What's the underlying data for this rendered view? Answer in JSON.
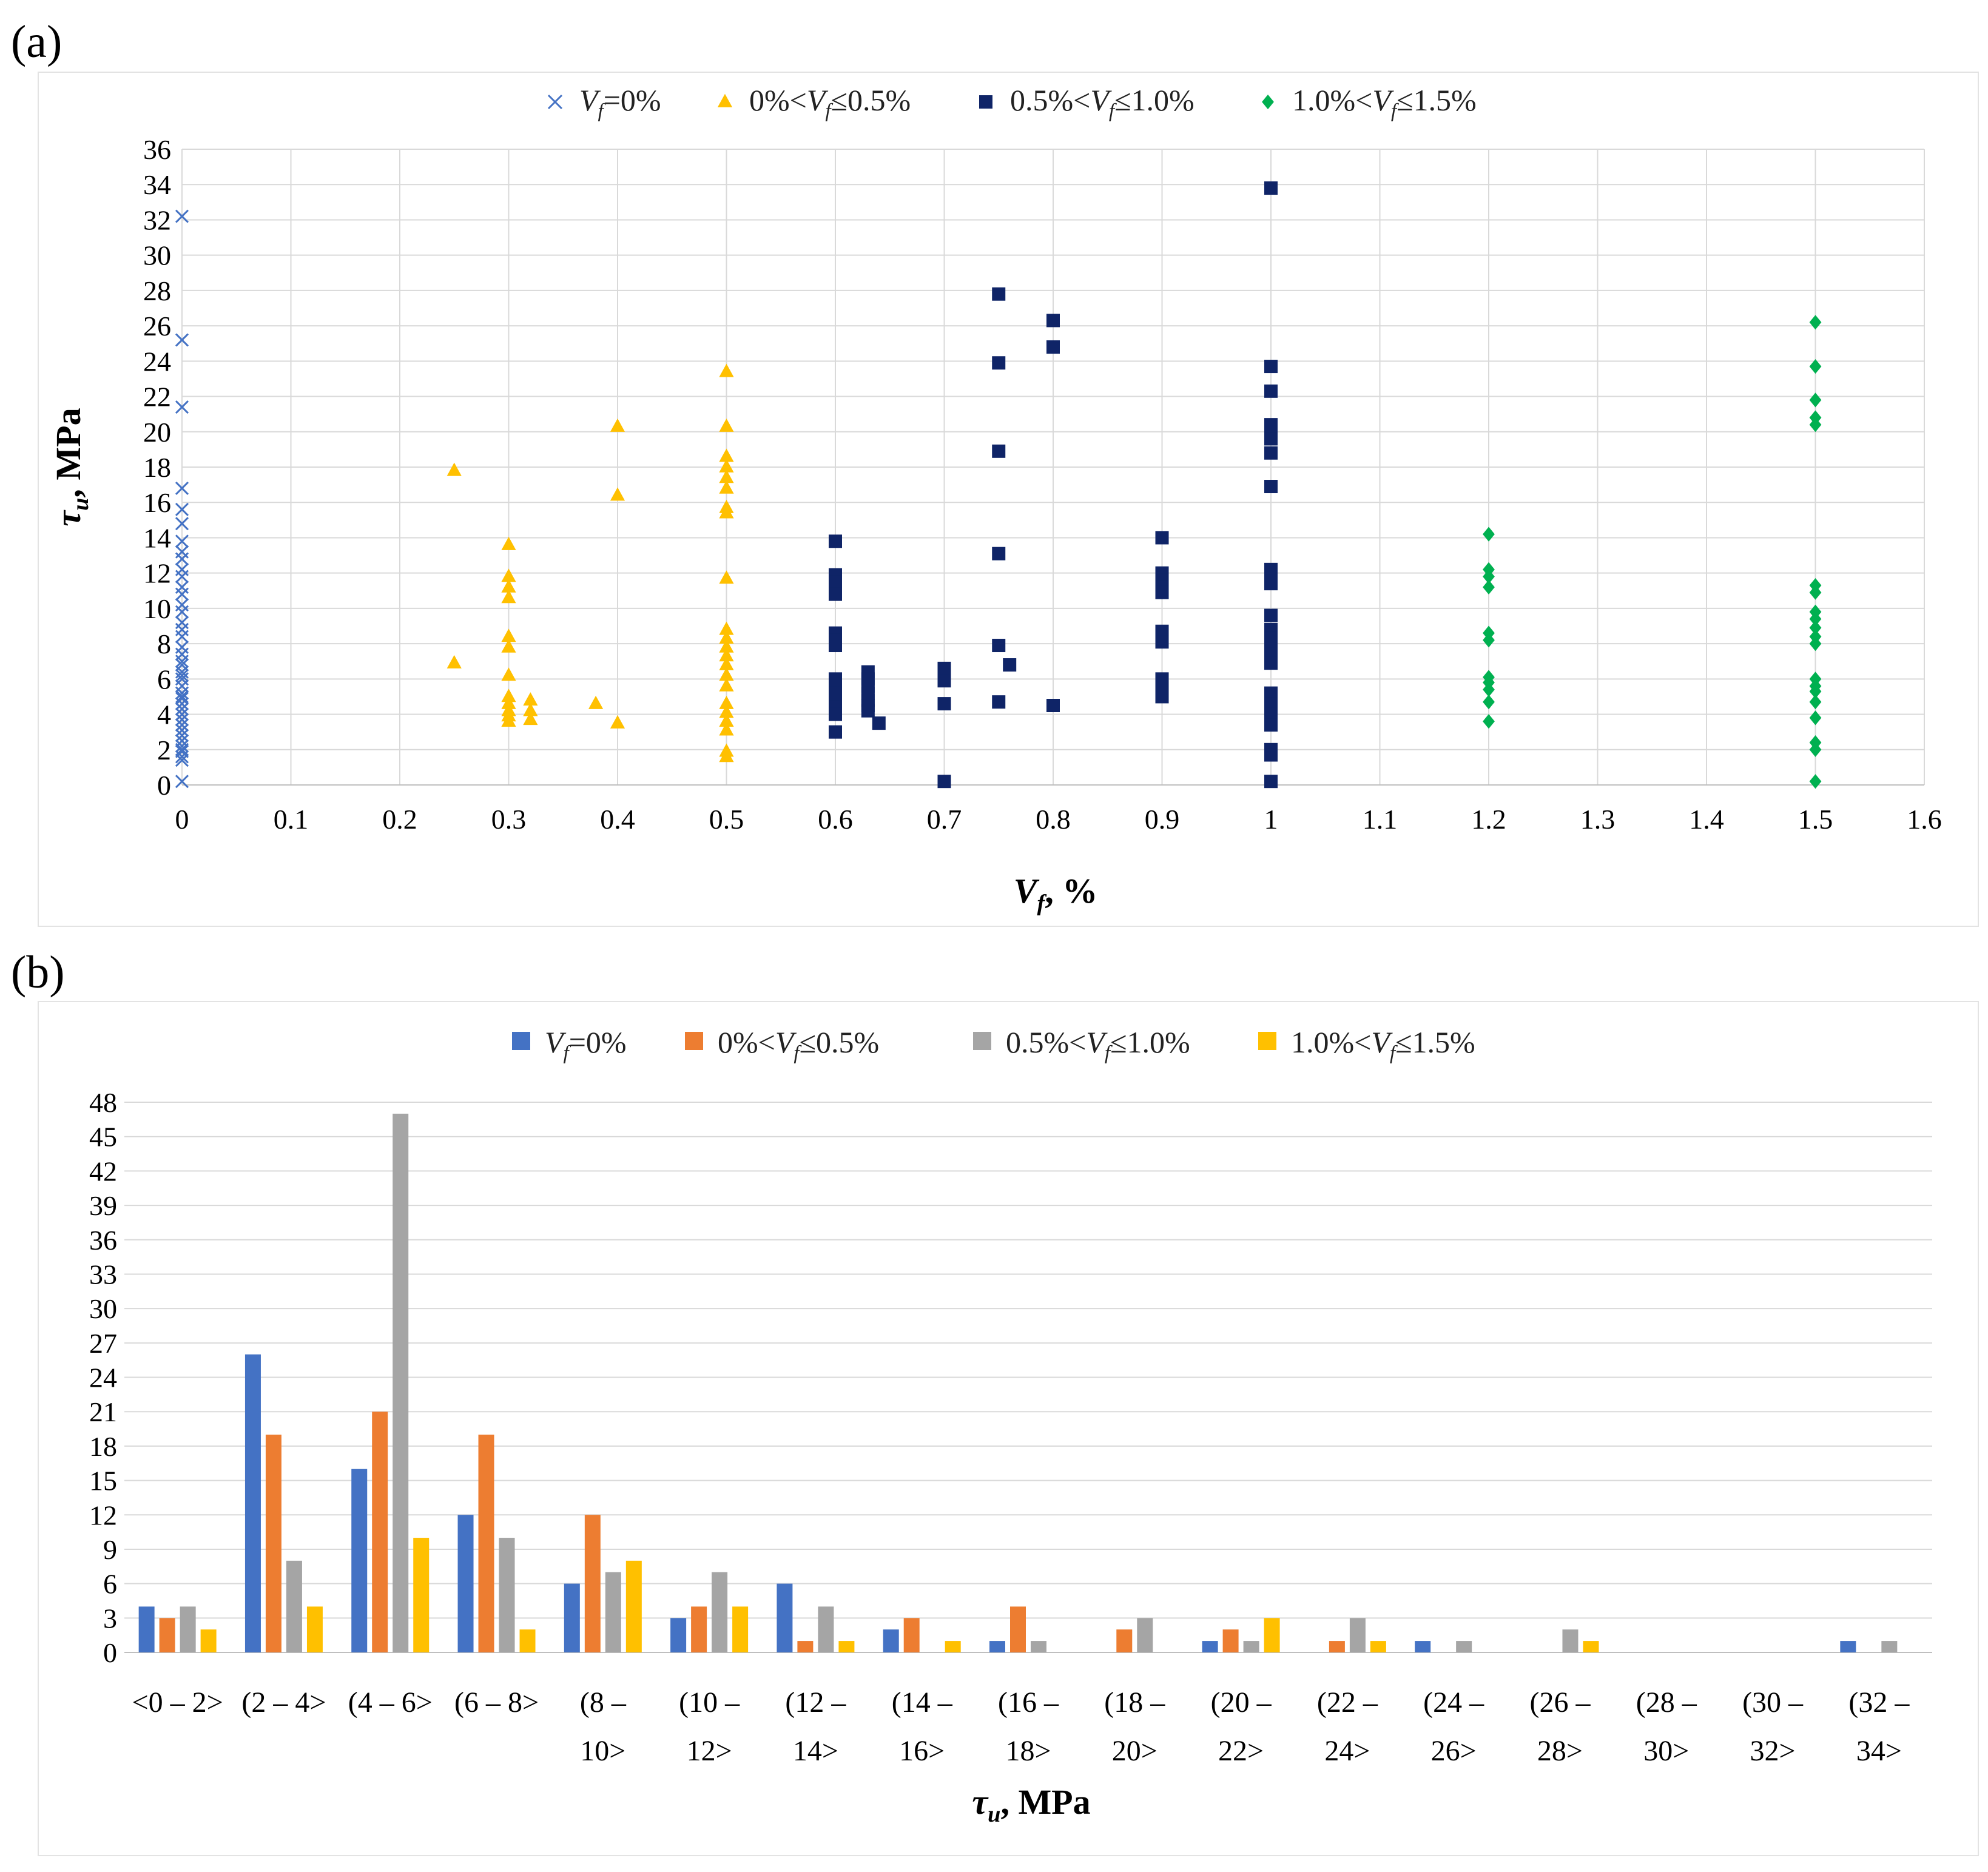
{
  "panels": {
    "a": "(a)",
    "b": "(b)"
  },
  "chart_data": [
    {
      "type": "scatter",
      "panel": "(a)",
      "xlabel": {
        "main": "V",
        "sub": "f",
        "rest": ", %"
      },
      "ylabel": {
        "main": "τ",
        "sub": "u",
        "rest": ", MPa"
      },
      "xlim": [
        0,
        1.6
      ],
      "ylim": [
        0,
        36
      ],
      "xticks": [
        "0",
        "0.1",
        "0.2",
        "0.3",
        "0.4",
        "0.5",
        "0.6",
        "0.7",
        "0.8",
        "0.9",
        "1",
        "1.1",
        "1.2",
        "1.3",
        "1.4",
        "1.5",
        "1.6"
      ],
      "yticks": [
        "0",
        "2",
        "4",
        "6",
        "8",
        "10",
        "12",
        "14",
        "16",
        "18",
        "20",
        "22",
        "24",
        "26",
        "28",
        "30",
        "32",
        "34",
        "36"
      ],
      "grid": true,
      "legend_position": "top-center",
      "series": [
        {
          "name": "Vf=0%",
          "legend": {
            "pre": "",
            "v": "V",
            "s": "f",
            "post": "=0%"
          },
          "marker": "x",
          "color": "#4472c4",
          "x": [
            0,
            0,
            0,
            0,
            0,
            0,
            0,
            0,
            0,
            0,
            0,
            0,
            0,
            0,
            0,
            0,
            0,
            0,
            0,
            0,
            0,
            0,
            0,
            0,
            0,
            0,
            0,
            0,
            0,
            0,
            0,
            0,
            0,
            0,
            0,
            0,
            0,
            0,
            0,
            0,
            0,
            0,
            0
          ],
          "y": [
            32.2,
            25.2,
            21.4,
            16.8,
            15.6,
            14.8,
            13.8,
            13.2,
            12.8,
            12.2,
            11.8,
            11.2,
            10.8,
            10.2,
            9.8,
            9.2,
            8.8,
            8.4,
            7.8,
            7.4,
            7.0,
            6.8,
            6.4,
            6.0,
            5.6,
            5.2,
            4.9,
            4.6,
            4.3,
            4.0,
            3.7,
            3.4,
            3.1,
            2.8,
            2.5,
            2.2,
            1.9,
            1.6,
            1.4,
            0.2,
            5.0,
            6.2,
            2.0
          ]
        },
        {
          "name": "0%<Vf≤0.5%",
          "legend": {
            "pre": "0%<",
            "v": "V",
            "s": "f",
            "post": "≤0.5%"
          },
          "marker": "triangle",
          "color": "#ffc000",
          "x": [
            0.25,
            0.25,
            0.3,
            0.3,
            0.3,
            0.3,
            0.3,
            0.3,
            0.3,
            0.3,
            0.3,
            0.3,
            0.3,
            0.3,
            0.32,
            0.32,
            0.32,
            0.38,
            0.4,
            0.4,
            0.4,
            0.5,
            0.5,
            0.5,
            0.5,
            0.5,
            0.5,
            0.5,
            0.5,
            0.5,
            0.5,
            0.5,
            0.5,
            0.5,
            0.5,
            0.5,
            0.5,
            0.5,
            0.5,
            0.5,
            0.5,
            0.5,
            0.5
          ],
          "y": [
            17.8,
            6.9,
            13.6,
            11.8,
            11.2,
            10.6,
            8.4,
            7.8,
            6.2,
            5.0,
            4.6,
            4.2,
            3.9,
            3.6,
            4.8,
            4.2,
            3.7,
            4.6,
            20.3,
            16.4,
            3.5,
            23.4,
            20.3,
            18.6,
            18.0,
            17.4,
            16.8,
            15.7,
            15.4,
            11.7,
            8.8,
            8.3,
            7.8,
            7.3,
            6.8,
            6.2,
            5.6,
            4.6,
            4.1,
            3.6,
            3.1,
            1.9,
            1.6
          ]
        },
        {
          "name": "0.5%<Vf≤1.0%",
          "legend": {
            "pre": "0.5%<",
            "v": "V",
            "s": "f",
            "post": "≤1.0%"
          },
          "marker": "square",
          "color": "#0f2467",
          "x": [
            0.6,
            0.6,
            0.6,
            0.6,
            0.6,
            0.6,
            0.6,
            0.6,
            0.6,
            0.6,
            0.6,
            0.6,
            0.6,
            0.6,
            0.6,
            0.63,
            0.63,
            0.63,
            0.63,
            0.63,
            0.63,
            0.63,
            0.64,
            0.7,
            0.7,
            0.7,
            0.7,
            0.7,
            0.75,
            0.75,
            0.75,
            0.75,
            0.75,
            0.75,
            0.76,
            0.8,
            0.8,
            0.8,
            0.9,
            0.9,
            0.9,
            0.9,
            0.9,
            0.9,
            0.9,
            0.9,
            0.9,
            0.9,
            0.9,
            1,
            1,
            1,
            1,
            1,
            1,
            1,
            1,
            1,
            1,
            1,
            1,
            1,
            1,
            1,
            1,
            1,
            1,
            1,
            1,
            1,
            1,
            1,
            1,
            1,
            1,
            1
          ],
          "y": [
            13.8,
            11.9,
            11.5,
            11.1,
            10.8,
            8.6,
            8.2,
            7.9,
            6.0,
            5.6,
            5.2,
            4.8,
            4.4,
            4.0,
            3.0,
            6.4,
            6.0,
            5.6,
            5.2,
            4.8,
            4.5,
            4.2,
            3.5,
            6.6,
            6.3,
            5.9,
            4.6,
            0.2,
            27.8,
            23.9,
            18.9,
            13.1,
            7.9,
            4.7,
            6.8,
            26.3,
            24.8,
            4.5,
            14.0,
            12.0,
            11.6,
            11.2,
            10.9,
            8.7,
            8.4,
            8.1,
            6.0,
            5.5,
            5.0,
            33.8,
            23.7,
            22.3,
            20.4,
            20.0,
            19.6,
            18.8,
            16.9,
            12.2,
            11.8,
            11.4,
            9.6,
            8.8,
            8.3,
            7.9,
            7.4,
            6.9,
            5.2,
            4.9,
            4.6,
            4.3,
            4.0,
            3.7,
            3.4,
            2.0,
            1.7,
            0.2
          ]
        },
        {
          "name": "1.0%<Vf≤1.5%",
          "legend": {
            "pre": "1.0%<",
            "v": "V",
            "s": "f",
            "post": "≤1.5%"
          },
          "marker": "diamond",
          "color": "#00b050",
          "x": [
            1.2,
            1.2,
            1.2,
            1.2,
            1.2,
            1.2,
            1.2,
            1.2,
            1.2,
            1.2,
            1.2,
            1.5,
            1.5,
            1.5,
            1.5,
            1.5,
            1.5,
            1.5,
            1.5,
            1.5,
            1.5,
            1.5,
            1.5,
            1.5,
            1.5,
            1.5,
            1.5,
            1.5,
            1.5,
            1.5,
            1.5
          ],
          "y": [
            14.2,
            12.2,
            11.8,
            11.2,
            8.6,
            8.2,
            6.1,
            5.8,
            5.4,
            4.7,
            3.6,
            26.2,
            23.7,
            21.8,
            20.8,
            20.4,
            11.3,
            10.9,
            9.8,
            9.4,
            8.9,
            8.4,
            8.0,
            5.6,
            5.3,
            4.7,
            3.8,
            2.4,
            2.0,
            0.2,
            6.0
          ]
        }
      ]
    },
    {
      "type": "bar",
      "panel": "(b)",
      "xlabel": {
        "main": "τ",
        "sub": "u",
        "rest": ", MPa"
      },
      "ylabel": "",
      "ylim": [
        0,
        48
      ],
      "yticks": [
        "0",
        "3",
        "6",
        "9",
        "12",
        "15",
        "18",
        "21",
        "24",
        "27",
        "30",
        "33",
        "36",
        "39",
        "42",
        "45",
        "48"
      ],
      "grid": true,
      "legend_position": "top-center",
      "categories": [
        [
          "<0 – 2>"
        ],
        [
          "(2 – 4>"
        ],
        [
          "(4 – 6>"
        ],
        [
          "(6 – 8>"
        ],
        [
          "(8 –",
          "10>"
        ],
        [
          "(10 –",
          "12>"
        ],
        [
          "(12 –",
          "14>"
        ],
        [
          "(14 –",
          "16>"
        ],
        [
          "(16 –",
          "18>"
        ],
        [
          "(18 –",
          "20>"
        ],
        [
          "(20 –",
          "22>"
        ],
        [
          "(22 –",
          "24>"
        ],
        [
          "(24 –",
          "26>"
        ],
        [
          "(26 –",
          "28>"
        ],
        [
          "(28 –",
          "30>"
        ],
        [
          "(30 –",
          "32>"
        ],
        [
          "(32 –",
          "34>"
        ]
      ],
      "series": [
        {
          "name": "Vf=0%",
          "legend": {
            "pre": "",
            "v": "V",
            "s": "f",
            "post": "=0%"
          },
          "color": "#4472c4",
          "values": [
            4,
            26,
            16,
            12,
            6,
            3,
            6,
            2,
            1,
            0,
            1,
            0,
            1,
            0,
            0,
            0,
            1
          ]
        },
        {
          "name": "0%<Vf≤0.5%",
          "legend": {
            "pre": "0%<",
            "v": "V",
            "s": "f",
            "post": "≤0.5%"
          },
          "color": "#ed7d31",
          "values": [
            3,
            19,
            21,
            19,
            12,
            4,
            1,
            3,
            4,
            2,
            2,
            1,
            0,
            0,
            0,
            0,
            0
          ]
        },
        {
          "name": "0.5%<Vf≤1.0%",
          "legend": {
            "pre": "0.5%<",
            "v": "V",
            "s": "f",
            "post": "≤1.0%"
          },
          "color": "#a5a5a5",
          "values": [
            4,
            8,
            47,
            10,
            7,
            7,
            4,
            0,
            1,
            3,
            1,
            3,
            1,
            2,
            0,
            0,
            1
          ]
        },
        {
          "name": "1.0%<Vf≤1.5%",
          "legend": {
            "pre": "1.0%<",
            "v": "V",
            "s": "f",
            "post": "≤1.5%"
          },
          "color": "#ffc000",
          "values": [
            2,
            4,
            10,
            2,
            8,
            4,
            1,
            1,
            0,
            0,
            3,
            1,
            0,
            1,
            0,
            0,
            0
          ]
        }
      ]
    }
  ]
}
